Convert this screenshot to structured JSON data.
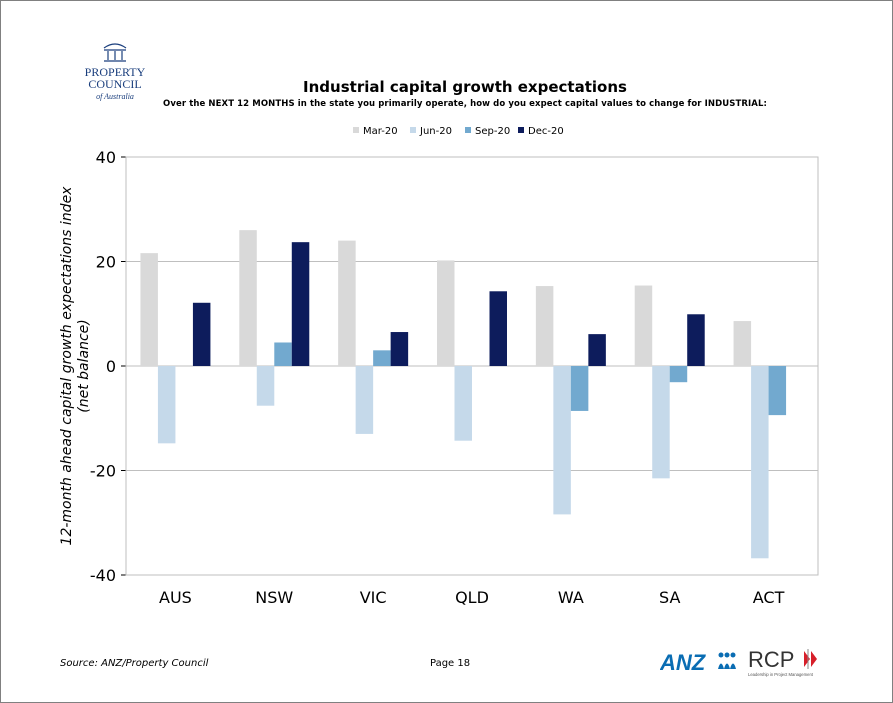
{
  "header": {
    "logo_text": [
      "PROPERTY",
      "COUNCIL",
      "of Australia"
    ],
    "title": "Industrial capital growth expectations",
    "subtitle": "Over the NEXT 12 MONTHS in the state you primarily operate, how do you expect capital values to change for INDUSTRIAL:"
  },
  "footer": {
    "source": "Source: ANZ/Property Council",
    "page": "Page 18",
    "anz_text": "ANZ",
    "rcp_text": "RCP",
    "rcp_tagline": "Leadership in Project Management"
  },
  "colors": {
    "mar": "#d9d9d9",
    "jun": "#c5d9ea",
    "sep": "#72a9cf",
    "dec": "#0d1c5c",
    "anz": "#0a6db3",
    "rcp_red": "#d71f2a",
    "logo_blue": "#1a3e7d"
  },
  "chart_data": {
    "type": "bar",
    "title": "Industrial capital growth expectations",
    "subtitle": "Over the NEXT 12 MONTHS in the state you primarily operate, how do you expect capital values to change for INDUSTRIAL:",
    "ylabel_line1": "12-month ahead capital growth expectations index",
    "ylabel_line2": "(net balance)",
    "xlabel": "",
    "ylim": [
      -40,
      40
    ],
    "yticks": [
      -40,
      -20,
      0,
      20,
      40
    ],
    "ytick_labels": [
      "-40",
      "-20",
      "0",
      "20",
      "40"
    ],
    "grid": true,
    "legend_position": "top",
    "categories": [
      "AUS",
      "NSW",
      "VIC",
      "QLD",
      "WA",
      "SA",
      "ACT"
    ],
    "series": [
      {
        "name": "Mar-20",
        "values": [
          21.6,
          26.0,
          24.0,
          20.2,
          15.3,
          15.4,
          8.6
        ]
      },
      {
        "name": "Jun-20",
        "values": [
          -14.8,
          -7.6,
          -13.0,
          -14.3,
          -28.4,
          -21.5,
          -36.8
        ]
      },
      {
        "name": "Sep-20",
        "values": [
          0,
          4.5,
          3.0,
          0,
          -8.6,
          -3.1,
          -9.4
        ]
      },
      {
        "name": "Dec-20",
        "values": [
          12.1,
          23.7,
          6.5,
          14.3,
          6.1,
          9.9,
          0
        ]
      }
    ]
  }
}
